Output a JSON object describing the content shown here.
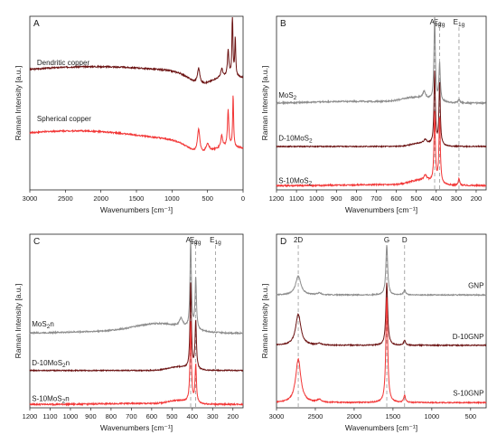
{
  "chart_data": [
    {
      "panel": "A",
      "type": "line",
      "xlabel": "Wavenumbers [cm⁻¹]",
      "ylabel": "Raman Intensity [a.u.]",
      "xlim": [
        3000,
        0
      ],
      "xticks": [
        3000,
        2500,
        2000,
        1500,
        1000,
        500,
        0
      ],
      "series": [
        {
          "name": "Dendritic copper",
          "color": "#6b1212",
          "label_at": [
            2900,
            0.72
          ],
          "label_html": "Dendritic copper",
          "base": 0.6,
          "broad": [
            [
              2100,
              1600,
              0.11
            ],
            [
              600,
              160,
              -0.06
            ]
          ],
          "tilt": 0.0,
          "peaks": [
            [
              625,
              0.09,
              20
            ],
            [
              300,
              0.05,
              15
            ],
            [
              210,
              0.15,
              12
            ],
            [
              150,
              0.37,
              8
            ],
            [
              110,
              0.22,
              8
            ]
          ],
          "noise": 0.004
        },
        {
          "name": "Spherical copper",
          "color": "#f23535",
          "label_at": [
            2900,
            0.395
          ],
          "label_html": "Spherical copper",
          "base": 0.21,
          "broad": [
            [
              2400,
              1400,
              0.13
            ],
            [
              600,
              160,
              -0.06
            ]
          ],
          "tilt": 0.0,
          "peaks": [
            [
              625,
              0.14,
              20
            ],
            [
              500,
              0.05,
              30
            ],
            [
              300,
              0.07,
              15
            ],
            [
              210,
              0.21,
              12
            ],
            [
              140,
              0.3,
              8
            ]
          ],
          "noise": 0.004
        }
      ]
    },
    {
      "panel": "B",
      "type": "line",
      "xlabel": "Wavenumbers [cm⁻¹]",
      "ylabel": "Raman Intensity [a.u.]",
      "xlim": [
        1200,
        150
      ],
      "xticks": [
        1200,
        1100,
        1000,
        900,
        800,
        700,
        600,
        500,
        400,
        300,
        200
      ],
      "ref_lines": [
        {
          "x": 408,
          "label_html": "A<tspan font-size=\"6.5\" dy=\"2\">1g</tspan>",
          "label_x": 404
        },
        {
          "x": 383,
          "label_html": "E<tspan font-size=\"6.5\" dy=\"2\">2g</tspan>",
          "label_x": 385
        },
        {
          "x": 286,
          "label_html": "E<tspan font-size=\"6.5\" dy=\"2\">1g</tspan>",
          "label_x": 286
        }
      ],
      "series": [
        {
          "name": "MoS₂",
          "color": "#8c8c8c",
          "label_at": [
            1190,
            0.53
          ],
          "label_html": "MoS<tspan font-size=\"6.5\" dy=\"2\">2</tspan>",
          "base": 0.5,
          "broad": [
            [
              500,
              70,
              0.03
            ],
            [
              800,
              200,
              0.01
            ]
          ],
          "tilt": 0.0,
          "peaks": [
            [
              408,
              0.48,
              4
            ],
            [
              383,
              0.22,
              4
            ],
            [
              286,
              0.02,
              5
            ],
            [
              460,
              0.04,
              8
            ]
          ],
          "noise": 0.004
        },
        {
          "name": "D-10MoS₂",
          "color": "#6b1212",
          "label_at": [
            1190,
            0.285
          ],
          "label_html": "D-10MoS<tspan font-size=\"6.5\" dy=\"2\">2</tspan>",
          "base": 0.25,
          "broad": [
            [
              470,
              50,
              0.02
            ]
          ],
          "tilt": 0.0,
          "peaks": [
            [
              408,
              0.42,
              4
            ],
            [
              383,
              0.36,
              4
            ],
            [
              455,
              0.02,
              8
            ]
          ],
          "noise": 0.003
        },
        {
          "name": "S-10MoS₂",
          "color": "#f23535",
          "label_at": [
            1190,
            0.04
          ],
          "label_html": "S-10MoS<tspan font-size=\"6.5\" dy=\"2\">2</tspan>",
          "base": 0.025,
          "broad": [
            [
              470,
              60,
              0.03
            ],
            [
              700,
              150,
              0.005
            ]
          ],
          "tilt": 0.0,
          "peaks": [
            [
              408,
              0.4,
              4
            ],
            [
              383,
              0.38,
              4
            ],
            [
              286,
              0.04,
              4
            ],
            [
              455,
              0.03,
              8
            ]
          ],
          "noise": 0.004
        }
      ]
    },
    {
      "panel": "C",
      "type": "line",
      "xlabel": "Wavenumbers [cm⁻¹]",
      "ylabel": "Raman Intensity [a.u.]",
      "xlim": [
        1200,
        150
      ],
      "xticks": [
        1200,
        1100,
        1000,
        900,
        800,
        700,
        600,
        500,
        400,
        300,
        200
      ],
      "ref_lines": [
        {
          "x": 408,
          "label_html": "A<tspan font-size=\"6.5\" dy=\"2\">1g</tspan>",
          "label_x": 404
        },
        {
          "x": 383,
          "label_html": "E<tspan font-size=\"6.5\" dy=\"2\">2g</tspan>",
          "label_x": 385
        },
        {
          "x": 286,
          "label_html": "E<tspan font-size=\"6.5\" dy=\"2\">1g</tspan>",
          "label_x": 286
        }
      ],
      "series": [
        {
          "name": "MoS₂n",
          "color": "#8c8c8c",
          "label_at": [
            1190,
            0.47
          ],
          "label_html": "MoS<tspan font-size=\"6.5\" dy=\"2\">2</tspan><tspan dy=\"-2\">n</tspan>",
          "base": 0.43,
          "broad": [
            [
              560,
              120,
              0.05
            ],
            [
              800,
              200,
              0.01
            ]
          ],
          "tilt": 0.0,
          "peaks": [
            [
              408,
              0.51,
              4
            ],
            [
              383,
              0.3,
              4
            ],
            [
              455,
              0.05,
              10
            ]
          ],
          "noise": 0.004
        },
        {
          "name": "D-10MoS₂n",
          "color": "#6b1212",
          "label_at": [
            1190,
            0.245
          ],
          "label_html": "D-10MoS<tspan font-size=\"6.5\" dy=\"2\">2</tspan><tspan dy=\"-2\">n</tspan>",
          "base": 0.215,
          "broad": [
            [
              470,
              50,
              0.02
            ]
          ],
          "tilt": 0.0,
          "peaks": [
            [
              408,
              0.49,
              4
            ],
            [
              383,
              0.28,
              4
            ]
          ],
          "noise": 0.003
        },
        {
          "name": "S-10MoS₂n",
          "color": "#f23535",
          "label_at": [
            1190,
            0.04
          ],
          "label_html": "S-10MoS<tspan font-size=\"6.5\" dy=\"2\">2</tspan><tspan dy=\"-2\">n</tspan>",
          "base": 0.02,
          "broad": [
            [
              470,
              50,
              0.02
            ],
            [
              700,
              150,
              0.005
            ]
          ],
          "tilt": 0.0,
          "peaks": [
            [
              408,
              0.46,
              4
            ],
            [
              383,
              0.22,
              4
            ]
          ],
          "noise": 0.004
        }
      ]
    },
    {
      "panel": "D",
      "type": "line",
      "xlabel": "Wavenumbers [cm⁻¹]",
      "ylabel": "Raman Intensity [a.u.]",
      "xlim": [
        3000,
        300
      ],
      "xticks": [
        3000,
        2500,
        2000,
        1500,
        1000,
        500
      ],
      "ref_lines": [
        {
          "x": 2720,
          "label_html": "2D",
          "label_x": 2720
        },
        {
          "x": 1580,
          "label_html": "G",
          "label_x": 1580
        },
        {
          "x": 1350,
          "label_html": "D",
          "label_x": 1350
        }
      ],
      "series": [
        {
          "name": "GNP",
          "color": "#8c8c8c",
          "label_at": [
            330,
            0.69
          ],
          "label_html": "GNP",
          "label_anchor": "end",
          "base": 0.65,
          "broad": [],
          "tilt": 0.0,
          "peaks": [
            [
              2720,
              0.11,
              40
            ],
            [
              1580,
              0.29,
              14
            ],
            [
              1350,
              0.03,
              14
            ],
            [
              2450,
              0.01,
              30
            ]
          ],
          "noise": 0.003
        },
        {
          "name": "D-10GNP",
          "color": "#6b1212",
          "label_at": [
            330,
            0.395
          ],
          "label_html": "D-10GNP",
          "label_anchor": "end",
          "base": 0.36,
          "broad": [],
          "tilt": 0.0,
          "peaks": [
            [
              2720,
              0.18,
              40
            ],
            [
              1580,
              0.36,
              14
            ],
            [
              1350,
              0.03,
              14
            ],
            [
              2450,
              0.01,
              30
            ]
          ],
          "noise": 0.003
        },
        {
          "name": "S-10GNP",
          "color": "#f23535",
          "label_at": [
            330,
            0.07
          ],
          "label_html": "S-10GNP",
          "label_anchor": "end",
          "base": 0.03,
          "broad": [],
          "tilt": 0.0,
          "peaks": [
            [
              2720,
              0.25,
              40
            ],
            [
              1580,
              0.61,
              14
            ],
            [
              1350,
              0.04,
              14
            ],
            [
              2450,
              0.015,
              30
            ]
          ],
          "noise": 0.003
        }
      ]
    }
  ]
}
